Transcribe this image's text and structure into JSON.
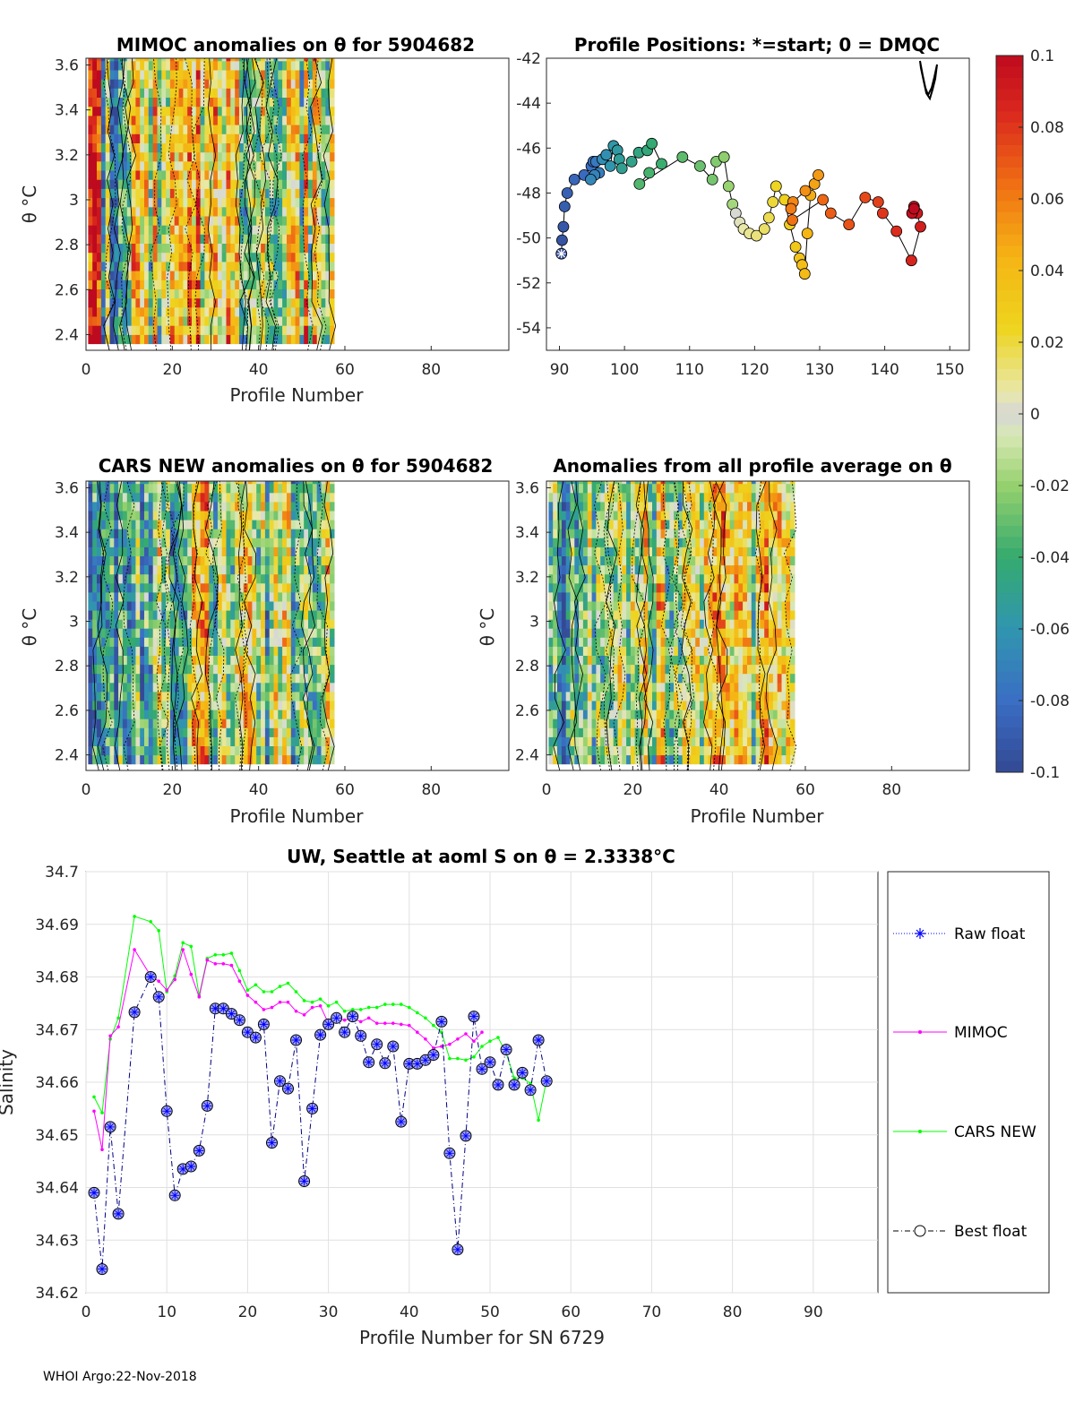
{
  "chart_data": [
    {
      "type": "heatmap",
      "id": "mimoc",
      "title": "MIMOC anomalies on θ  for 5904682",
      "xlabel": "Profile Number",
      "ylabel": "θ °C",
      "xlim": [
        0,
        98
      ],
      "ylim": [
        2.33,
        3.63
      ],
      "xticks": [
        "0",
        "20",
        "40",
        "60",
        "80"
      ],
      "yticks": [
        "2.4",
        "2.6",
        "2.8",
        "3",
        "3.2",
        "3.4",
        "3.6"
      ],
      "n_profiles": 57
    },
    {
      "type": "scatter",
      "id": "positions",
      "title": "Profile Positions: *=start; 0 = DMQC",
      "xlim": [
        88,
        153
      ],
      "ylim": [
        -55,
        -42
      ],
      "xticks": [
        "90",
        "100",
        "110",
        "120",
        "130",
        "140",
        "150"
      ],
      "yticks": [
        "-42",
        "-44",
        "-46",
        "-48",
        "-50",
        "-52",
        "-54"
      ],
      "lon": [
        90.3,
        90.4,
        90.6,
        90.8,
        91.2,
        92.3,
        93.8,
        94.9,
        95.2,
        95.6,
        96.1,
        95.4,
        94.8,
        96.6,
        97.2,
        97.8,
        98.3,
        98.9,
        99.2,
        99.6,
        101.1,
        102.2,
        103.5,
        104.2,
        105.7,
        103.8,
        102.3,
        108.9,
        111.6,
        113.5,
        114.1,
        115.3,
        116.0,
        116.6,
        117.1,
        117.7,
        118.3,
        119.2,
        120.3,
        121.5,
        122.2,
        122.8,
        123.3,
        124.6,
        125.4,
        126.3,
        126.9,
        127.3,
        127.7,
        128.1,
        128.6,
        129.2,
        129.8,
        127.8,
        125.9,
        125.6,
        125.8
      ],
      "lat": [
        -50.7,
        -50.1,
        -49.5,
        -48.6,
        -48.0,
        -47.4,
        -47.2,
        -46.8,
        -46.6,
        -46.6,
        -47.1,
        -47.2,
        -47.4,
        -46.5,
        -46.3,
        -46.8,
        -45.9,
        -46.1,
        -46.5,
        -46.9,
        -46.6,
        -46.2,
        -46.1,
        -45.8,
        -46.7,
        -47.1,
        -47.6,
        -46.4,
        -46.8,
        -47.4,
        -46.6,
        -46.4,
        -47.7,
        -48.5,
        -48.9,
        -49.3,
        -49.6,
        -49.8,
        -49.9,
        -49.6,
        -49.1,
        -48.4,
        -47.7,
        -48.3,
        -49.4,
        -50.4,
        -50.9,
        -51.2,
        -51.6,
        -49.8,
        -48.1,
        -47.6,
        -47.2,
        -47.9,
        -48.4,
        -48.7,
        -49.2
      ],
      "lon2": [
        130.5,
        131.7,
        134.5,
        137.0,
        139.0,
        139.7,
        141.8,
        144.1,
        145.5,
        145.0,
        144.5,
        144.2,
        144.5
      ],
      "lat2": [
        -48.3,
        -48.9,
        -49.4,
        -48.2,
        -48.4,
        -48.9,
        -49.7,
        -51.0,
        -49.5,
        -48.9,
        -48.6,
        -48.9,
        -48.7
      ]
    },
    {
      "type": "heatmap",
      "id": "cars",
      "title": "CARS NEW anomalies on θ for 5904682",
      "xlabel": "Profile Number",
      "ylabel": "θ °C",
      "xlim": [
        0,
        98
      ],
      "ylim": [
        2.33,
        3.63
      ],
      "xticks": [
        "0",
        "20",
        "40",
        "60",
        "80"
      ],
      "yticks": [
        "2.4",
        "2.6",
        "2.8",
        "3",
        "3.2",
        "3.4",
        "3.6"
      ],
      "n_profiles": 57
    },
    {
      "type": "heatmap",
      "id": "avg",
      "title": "Anomalies from all profile average on θ",
      "xlabel": "Profile Number",
      "ylabel": "θ °C",
      "xlim": [
        0,
        98
      ],
      "ylim": [
        2.33,
        3.63
      ],
      "xticks": [
        "0",
        "20",
        "40",
        "60",
        "80"
      ],
      "yticks": [
        "2.4",
        "2.6",
        "2.8",
        "3",
        "3.2",
        "3.4",
        "3.6"
      ],
      "n_profiles": 57
    },
    {
      "type": "colorbar",
      "id": "cbar",
      "range": [
        -0.1,
        0.1
      ],
      "ticks": [
        "0.1",
        "0.08",
        "0.06",
        "0.04",
        "0.02",
        "0",
        "-0.02",
        "-0.04",
        "-0.06",
        "-0.08",
        "-0.1"
      ]
    },
    {
      "type": "line",
      "id": "salinity",
      "title": "UW, Seattle at aoml S on θ = 2.3338°C",
      "xlabel": "Profile Number for SN 6729",
      "ylabel": "Salinity",
      "xlim": [
        0,
        98
      ],
      "ylim": [
        34.62,
        34.7
      ],
      "xticks": [
        "0",
        "10",
        "20",
        "30",
        "40",
        "50",
        "60",
        "70",
        "80",
        "90"
      ],
      "yticks": [
        "34.7",
        "34.69",
        "34.68",
        "34.67",
        "34.66",
        "34.65",
        "34.64",
        "34.63",
        "34.62"
      ],
      "series": [
        {
          "name": "Best float",
          "color": "#000080",
          "x": [
            1,
            2,
            3,
            4,
            6,
            8,
            9,
            10,
            11,
            12,
            13,
            14,
            15,
            16,
            17,
            18,
            19,
            20,
            21,
            22,
            23,
            24,
            25,
            26,
            27,
            28,
            29,
            30,
            31,
            32,
            33,
            34,
            35,
            36,
            37,
            38,
            39,
            40,
            41,
            42,
            43,
            44,
            45,
            46,
            47,
            48,
            49,
            50,
            51,
            52,
            53,
            54,
            55,
            56,
            57
          ],
          "values": [
            34.639,
            34.6245,
            34.6515,
            34.635,
            34.6733,
            34.68,
            34.6762,
            34.6545,
            34.6385,
            34.6435,
            34.644,
            34.647,
            34.6555,
            34.674,
            34.674,
            34.673,
            34.6718,
            34.6695,
            34.6685,
            34.671,
            34.6485,
            34.6602,
            34.6588,
            34.668,
            34.6412,
            34.655,
            34.669,
            34.671,
            34.6722,
            34.6695,
            34.6725,
            34.6688,
            34.6638,
            34.6672,
            34.6636,
            34.6668,
            34.6525,
            34.6635,
            34.6635,
            34.6642,
            34.6652,
            34.6715,
            34.6465,
            34.6282,
            34.6498,
            34.6725,
            34.6625,
            34.6638,
            34.6595,
            34.6662,
            34.6595,
            34.6618,
            34.6585,
            34.668,
            34.6602
          ]
        },
        {
          "name": "MIMOC",
          "color": "#ff00ff",
          "x": [
            1,
            2,
            3,
            4,
            6,
            8,
            9,
            10,
            11,
            12,
            13,
            14,
            15,
            16,
            17,
            18,
            19,
            20,
            21,
            22,
            23,
            24,
            25,
            26,
            27,
            28,
            29,
            30,
            31,
            32,
            33,
            34,
            35,
            36,
            37,
            38,
            39,
            40,
            41,
            42,
            43,
            44,
            45,
            46,
            47,
            48,
            49
          ],
          "values": [
            34.6545,
            34.6472,
            34.6688,
            34.6705,
            34.6852,
            34.6802,
            34.6792,
            34.6775,
            34.6795,
            34.6852,
            34.6805,
            34.6762,
            34.6832,
            34.6825,
            34.6825,
            34.6822,
            34.6792,
            34.6765,
            34.6752,
            34.6738,
            34.6742,
            34.6752,
            34.6752,
            34.6735,
            34.6728,
            34.6742,
            34.6745,
            34.6712,
            34.6722,
            34.6718,
            34.6722,
            34.6715,
            34.6722,
            34.6712,
            34.6712,
            34.6712,
            34.671,
            34.6708,
            34.6695,
            34.6682,
            34.6665,
            34.6668,
            34.6672,
            34.6682,
            34.6692,
            34.6678,
            34.6695
          ]
        },
        {
          "name": "CARS NEW",
          "color": "#00ff00",
          "x": [
            1,
            2,
            3,
            4,
            6,
            8,
            9,
            10,
            11,
            12,
            13,
            14,
            15,
            16,
            17,
            18,
            19,
            20,
            21,
            22,
            23,
            24,
            25,
            26,
            27,
            28,
            29,
            30,
            31,
            32,
            33,
            34,
            35,
            36,
            37,
            38,
            39,
            40,
            41,
            42,
            43,
            44,
            45,
            46,
            47,
            48,
            49,
            50,
            51,
            52,
            53,
            54,
            55,
            56,
            57
          ],
          "values": [
            34.6572,
            34.6542,
            34.6682,
            34.6722,
            34.6915,
            34.6905,
            34.6888,
            34.6772,
            34.6802,
            34.6865,
            34.6858,
            34.6765,
            34.6835,
            34.6842,
            34.6842,
            34.6845,
            34.6812,
            34.6775,
            34.6785,
            34.6772,
            34.6772,
            34.6782,
            34.6788,
            34.6772,
            34.6755,
            34.6752,
            34.6758,
            34.6745,
            34.6752,
            34.6735,
            34.6738,
            34.6738,
            34.6742,
            34.6742,
            34.6748,
            34.6748,
            34.6748,
            34.6742,
            34.6732,
            34.6722,
            34.6708,
            34.6695,
            34.6645,
            34.6645,
            34.6642,
            34.6648,
            34.6668,
            34.6678,
            34.6685,
            34.6655,
            34.6608,
            34.6608,
            34.6598,
            34.6528,
            34.6605
          ]
        }
      ],
      "legend": [
        "Raw float",
        "MIMOC",
        "CARS NEW",
        "Best float"
      ]
    }
  ],
  "footer": "WHOI Argo:22-Nov-2018"
}
